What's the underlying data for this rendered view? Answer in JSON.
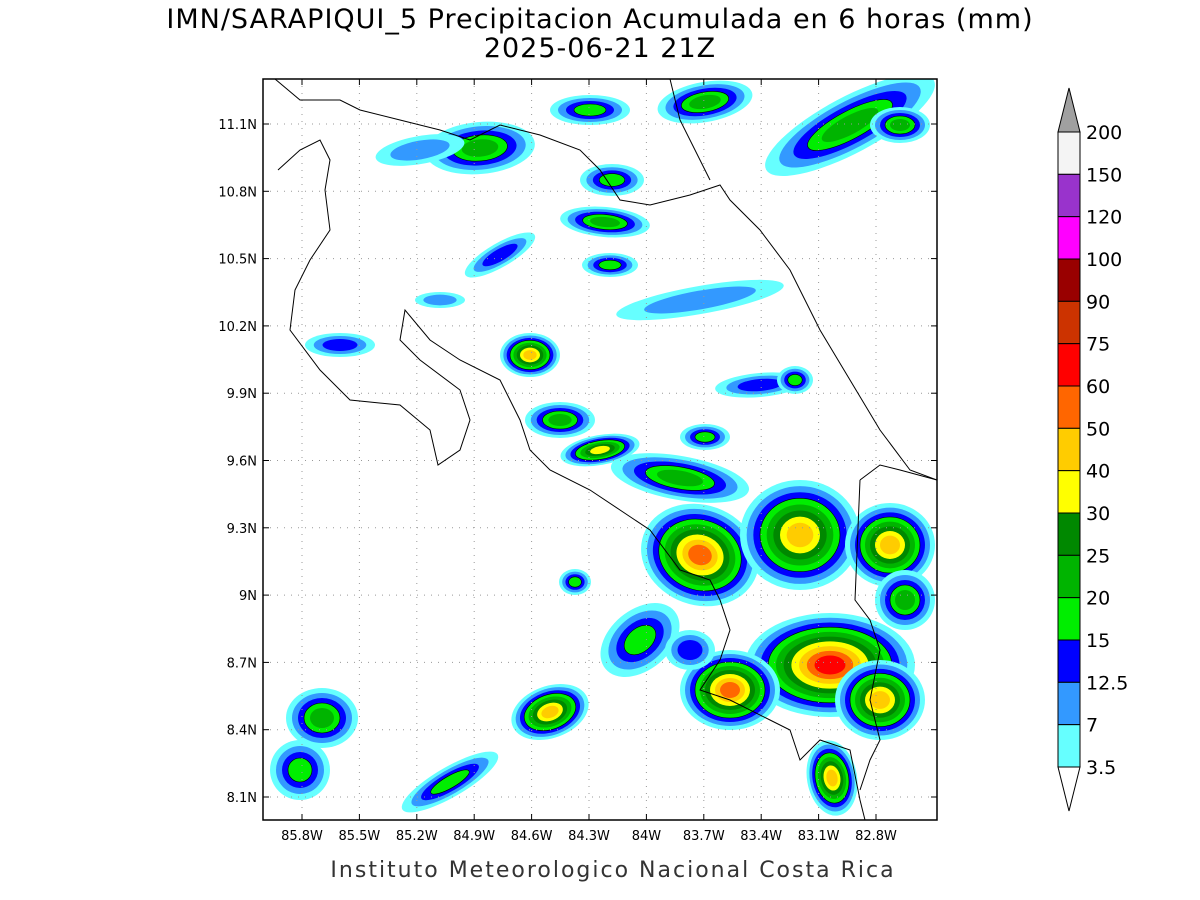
{
  "title": "IMN/SARAPIQUI_5 Precipitacion Acumulada en 6 horas (mm)",
  "subtitle": "2025-06-21 21Z",
  "map": {
    "lat_labels": [
      "8.1N",
      "8.4N",
      "8.7N",
      "9N",
      "9.3N",
      "9.6N",
      "9.9N",
      "10.2N",
      "10.5N",
      "10.8N",
      "11.1N"
    ],
    "lon_labels": [
      "85.8W",
      "85.5W",
      "85.2W",
      "84.9W",
      "84.6W",
      "84.3W",
      "84W",
      "83.7W",
      "83.4W",
      "83.1W",
      "82.8W"
    ]
  },
  "colorbar": {
    "levels": [
      200,
      150,
      120,
      100,
      90,
      75,
      60,
      50,
      40,
      30,
      25,
      20,
      15,
      12.5,
      7,
      3.5
    ],
    "colors": [
      "#f4f4f4",
      "#9933cc",
      "#ff00ff",
      "#990000",
      "#cc3300",
      "#ff0000",
      "#ff6600",
      "#ffcc00",
      "#ffff00",
      "#008800",
      "#00b400",
      "#00ee00",
      "#0000ff",
      "#3399ff",
      "#66ffff"
    ],
    "over_color": "#a0a0a0",
    "under_color": "#ffffff"
  },
  "footer": "Instituto Meteorologico Nacional Costa Rica"
}
